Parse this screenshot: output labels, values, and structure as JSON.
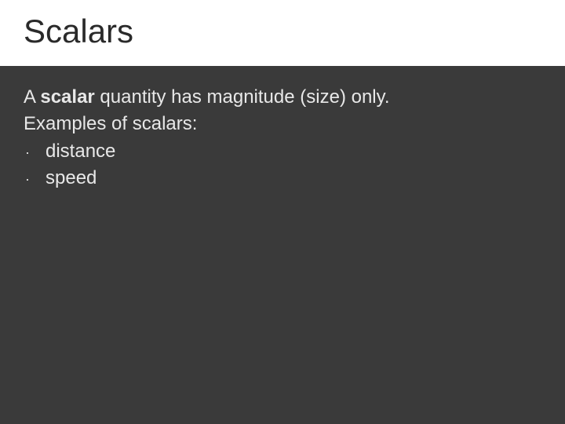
{
  "slide": {
    "background_color": "#3a3a3a",
    "title_bg_color": "#ffffff",
    "title_text_color": "#2a2a2a",
    "body_text_color": "#e8e8e8",
    "title_fontsize": 42,
    "body_fontsize": 24,
    "bullet_char": "·",
    "title": "Scalars",
    "line1_prefix": "A ",
    "line1_bold": "scalar",
    "line1_suffix": " quantity has magnitude (size) only.",
    "line2": "Examples of scalars:",
    "bullets": [
      {
        "text": "distance"
      },
      {
        "text": "speed"
      }
    ]
  }
}
